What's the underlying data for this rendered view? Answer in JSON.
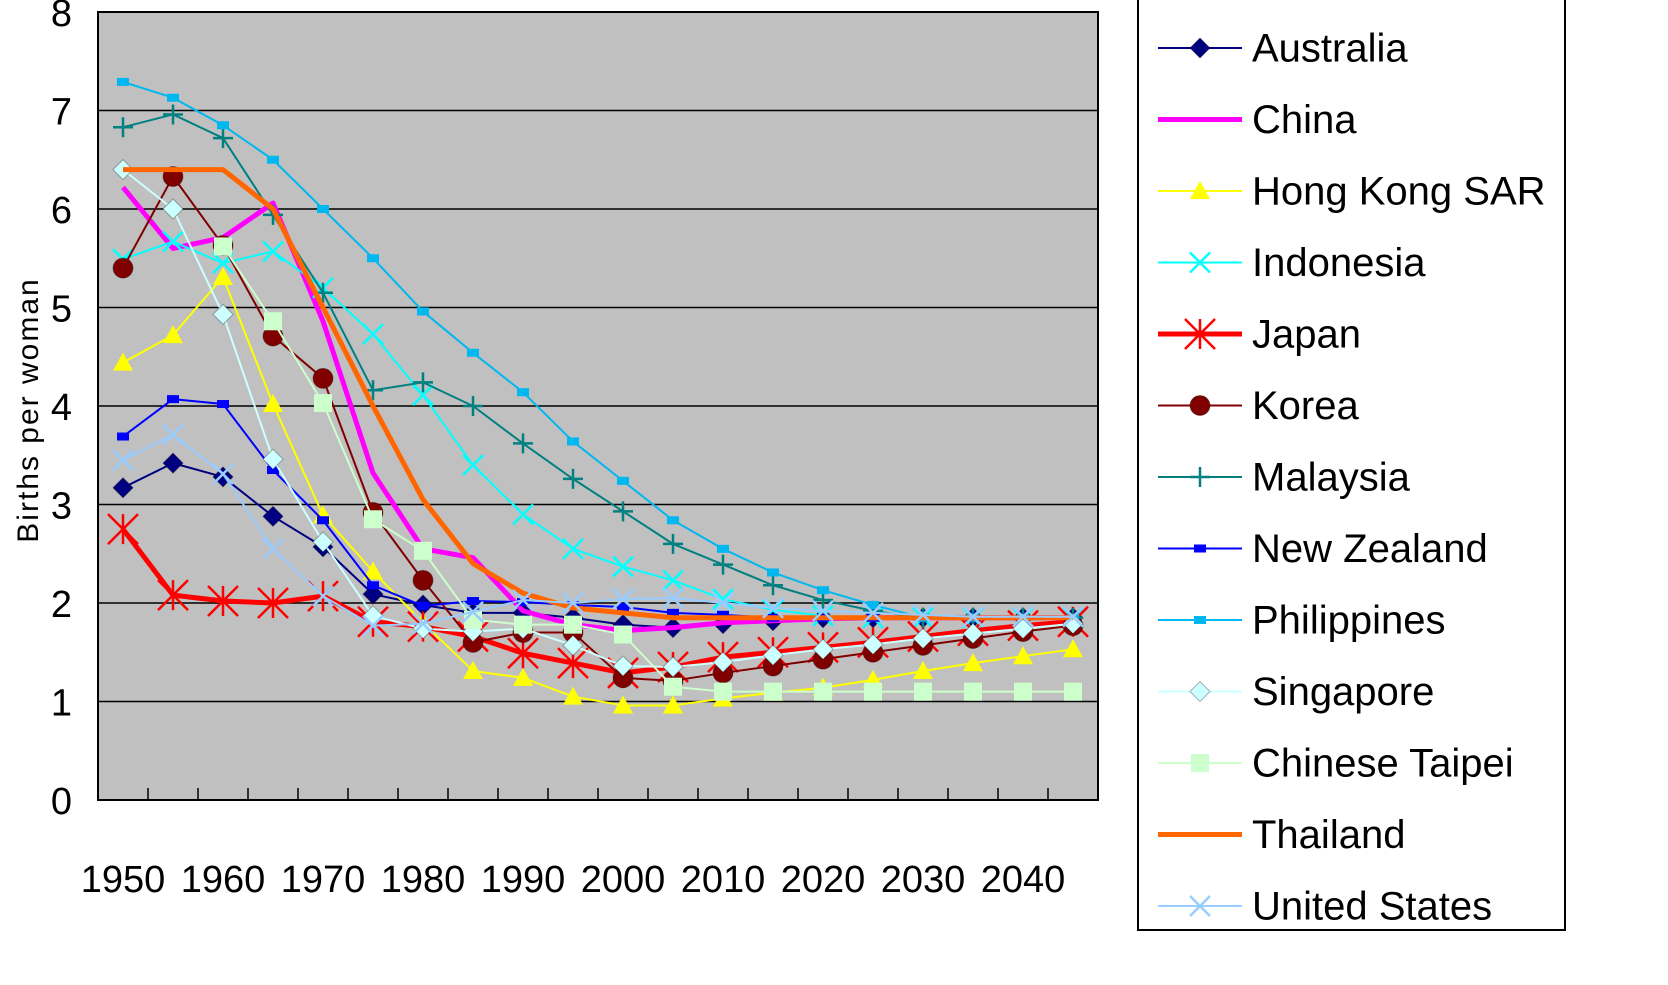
{
  "chart_data": {
    "type": "line",
    "y_label": "Births per woman",
    "categories": [
      "1950",
      null,
      "1960",
      null,
      "1970",
      null,
      "1980",
      null,
      "1990",
      null,
      "2000",
      null,
      "2010",
      null,
      "2020",
      null,
      "2030",
      null,
      "2040",
      null
    ],
    "ylim": [
      0,
      8
    ],
    "yticks": [
      0,
      1,
      2,
      3,
      4,
      5,
      6,
      7,
      8
    ],
    "grid": true,
    "plot_background": "#c0c0c0",
    "legend": "right",
    "series": [
      {
        "name": "Australia",
        "color": "#000080",
        "marker": "diamond",
        "line_width": 2,
        "values": [
          3.17,
          3.42,
          3.28,
          2.88,
          2.57,
          2.09,
          1.98,
          1.9,
          1.9,
          1.85,
          1.78,
          1.75,
          1.79,
          1.82,
          1.85,
          1.85,
          1.85,
          1.85,
          1.85,
          1.85
        ]
      },
      {
        "name": "China",
        "color": "#ff00ff",
        "marker": "none",
        "line_width": 5,
        "values": [
          6.22,
          5.6,
          5.71,
          6.06,
          4.86,
          3.32,
          2.55,
          2.46,
          1.92,
          1.78,
          1.72,
          1.75,
          1.8,
          1.82,
          1.84,
          1.85,
          1.85,
          1.85,
          1.85,
          1.85
        ]
      },
      {
        "name": "Hong Kong SAR",
        "color": "#ffff00",
        "marker": "triangle",
        "line_width": 2,
        "values": [
          4.44,
          4.72,
          5.31,
          4.02,
          2.89,
          2.32,
          1.8,
          1.31,
          1.24,
          1.05,
          0.96,
          0.96,
          1.03,
          1.09,
          1.14,
          1.22,
          1.31,
          1.39,
          1.46,
          1.53
        ]
      },
      {
        "name": "Indonesia",
        "color": "#00ffff",
        "marker": "x",
        "line_width": 2,
        "values": [
          5.49,
          5.67,
          5.45,
          5.57,
          5.2,
          4.73,
          4.11,
          3.4,
          2.9,
          2.55,
          2.37,
          2.23,
          2.04,
          1.93,
          1.87,
          1.85,
          1.85,
          1.85,
          1.85,
          1.85
        ]
      },
      {
        "name": "Japan",
        "color": "#ff0000",
        "marker": "asterisk",
        "line_width": 5,
        "values": [
          2.75,
          2.08,
          2.02,
          2.0,
          2.07,
          1.81,
          1.76,
          1.66,
          1.49,
          1.39,
          1.29,
          1.35,
          1.45,
          1.5,
          1.55,
          1.6,
          1.66,
          1.72,
          1.77,
          1.81
        ]
      },
      {
        "name": "Korea",
        "color": "#800000",
        "marker": "circle",
        "line_width": 2,
        "values": [
          5.4,
          6.33,
          5.63,
          4.71,
          4.28,
          2.92,
          2.23,
          1.6,
          1.7,
          1.7,
          1.24,
          1.21,
          1.29,
          1.36,
          1.43,
          1.5,
          1.57,
          1.64,
          1.71,
          1.77
        ]
      },
      {
        "name": "Malaysia",
        "color": "#008080",
        "marker": "plus",
        "line_width": 2,
        "values": [
          6.83,
          6.96,
          6.72,
          5.94,
          5.15,
          4.16,
          4.24,
          4.0,
          3.62,
          3.26,
          2.93,
          2.6,
          2.39,
          2.18,
          2.03,
          1.92,
          1.85,
          1.85,
          1.85,
          1.85
        ]
      },
      {
        "name": "New Zealand",
        "color": "#0000ff",
        "marker": "dash",
        "line_width": 2,
        "values": [
          3.69,
          4.07,
          4.02,
          3.35,
          2.84,
          2.18,
          1.97,
          2.02,
          2.01,
          1.98,
          1.96,
          1.9,
          1.88,
          1.85,
          1.85,
          1.85,
          1.85,
          1.85,
          1.85,
          1.85
        ]
      },
      {
        "name": "Philippines",
        "color": "#00b8f0",
        "marker": "dash",
        "line_width": 2,
        "values": [
          7.29,
          7.13,
          6.85,
          6.5,
          6.0,
          5.5,
          4.96,
          4.54,
          4.14,
          3.64,
          3.24,
          2.84,
          2.55,
          2.31,
          2.13,
          1.98,
          1.85,
          1.85,
          1.85,
          1.85
        ]
      },
      {
        "name": "Singapore",
        "color": "#ccffff",
        "marker": "diamond",
        "line_width": 2,
        "values": [
          6.4,
          6.0,
          4.93,
          3.46,
          2.62,
          1.87,
          1.74,
          1.71,
          1.74,
          1.57,
          1.36,
          1.35,
          1.4,
          1.47,
          1.53,
          1.58,
          1.64,
          1.69,
          1.74,
          1.79
        ]
      },
      {
        "name": "Chinese Taipei",
        "color": "#ccffcc",
        "marker": "square",
        "line_width": 2,
        "values": [
          null,
          null,
          5.62,
          4.86,
          4.03,
          2.85,
          2.53,
          1.83,
          1.78,
          1.78,
          1.68,
          1.15,
          1.1,
          1.1,
          1.1,
          1.1,
          1.1,
          1.1,
          1.1,
          1.1
        ]
      },
      {
        "name": "Thailand",
        "color": "#ff6600",
        "marker": "none",
        "line_width": 5,
        "values": [
          6.4,
          6.4,
          6.4,
          6.0,
          5.0,
          4.0,
          3.05,
          2.4,
          2.1,
          1.95,
          1.9,
          1.85,
          1.85,
          1.85,
          1.85,
          1.85,
          1.85,
          1.85,
          1.85,
          1.85
        ]
      },
      {
        "name": "United States",
        "color": "#99ccff",
        "marker": "x",
        "line_width": 2,
        "values": [
          3.45,
          3.71,
          3.31,
          2.55,
          2.07,
          1.77,
          1.79,
          1.91,
          2.03,
          2.0,
          2.04,
          2.05,
          2.0,
          1.95,
          1.92,
          1.9,
          1.88,
          1.86,
          1.86,
          1.86
        ]
      }
    ]
  }
}
